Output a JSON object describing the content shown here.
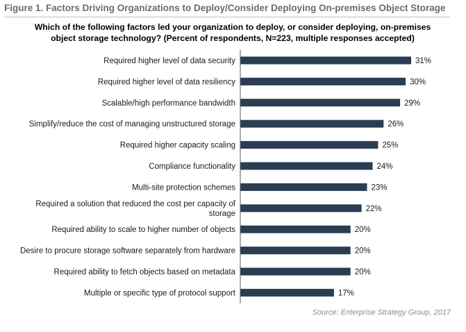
{
  "figure_title": "Figure 1. Factors Driving Organizations to Deploy/Consider Deploying On-premises Object Storage",
  "question_lines": [
    "Which of the following factors led your organization to deploy, or consider deploying, on-premises",
    "object storage technology? (Percent of respondents, N=223, multiple responses accepted)"
  ],
  "source": "Source: Enterprise Strategy Group, 2017",
  "colors": {
    "bar": "#2b3d52",
    "axis": "#595959"
  },
  "chart_data": {
    "type": "bar",
    "orientation": "horizontal",
    "categories": [
      "Required higher level of data security",
      "Required higher level of data resiliency",
      "Scalable/high performance bandwidth",
      "Simplify/reduce the cost of managing unstructured storage",
      "Required higher capacity scaling",
      "Compliance functionality",
      "Multi-site protection schemes",
      "Required a solution that reduced the cost per capacity of storage",
      "Required ability to scale to higher number of objects",
      "Desire to procure storage software separately from hardware",
      "Required ability to fetch objects based on metadata",
      "Multiple or specific type of protocol support"
    ],
    "category_label_lines": [
      [
        "Required higher level of data security"
      ],
      [
        "Required higher level of data resiliency"
      ],
      [
        "Scalable/high performance bandwidth"
      ],
      [
        "Simplify/reduce the cost of managing unstructured storage"
      ],
      [
        "Required higher capacity scaling"
      ],
      [
        "Compliance functionality"
      ],
      [
        "Multi-site protection schemes"
      ],
      [
        "Required a solution that reduced the cost per capacity of",
        "storage"
      ],
      [
        "Required ability to scale to higher number of objects"
      ],
      [
        "Desire to procure storage software separately from hardware"
      ],
      [
        "Required ability to fetch objects based on metadata"
      ],
      [
        "Multiple or specific type of protocol support"
      ]
    ],
    "values": [
      31,
      30,
      29,
      26,
      25,
      24,
      23,
      22,
      20,
      20,
      20,
      17
    ],
    "value_labels": [
      "31%",
      "30%",
      "29%",
      "26%",
      "25%",
      "24%",
      "23%",
      "22%",
      "20%",
      "20%",
      "20%",
      "17%"
    ],
    "unit": "%",
    "xlim": [
      0,
      31
    ],
    "grid": false,
    "legend": "none"
  }
}
